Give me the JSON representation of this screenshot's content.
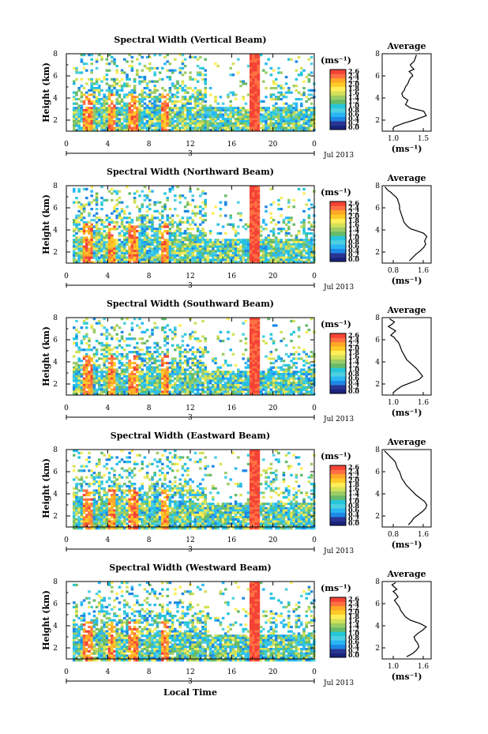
{
  "figure": {
    "bottom_xlabel": "Local Time",
    "colorbar_ticks": [
      "2.6",
      "2.4",
      "2.2",
      "2.0",
      "1.8",
      "1.6",
      "1.4",
      "1.2",
      "1.0",
      "0.8",
      "0.6",
      "0.4",
      "0.2",
      "0.0"
    ],
    "colormap": [
      "#1a237e",
      "#283593",
      "#1e88e5",
      "#29b6f6",
      "#4dd0e1",
      "#26c6da",
      "#66bb6a",
      "#9ccc65",
      "#d4e157",
      "#ffee58",
      "#ffca28",
      "#ffa726",
      "#ff7043",
      "#f44336"
    ],
    "date_label": "Jul 2013",
    "day_label": "3"
  },
  "chart_data": [
    {
      "type": "heatmap",
      "title": "Spectral Width (Vertical Beam)",
      "ylabel": "Height (km)",
      "unit_label": "(ms⁻¹)",
      "x_ticks": [
        "0",
        "4",
        "8",
        "12",
        "16",
        "20",
        "0"
      ],
      "y_ticks": [
        "8",
        "6",
        "4",
        "2"
      ],
      "xlim": [
        0,
        24
      ],
      "ylim": [
        1,
        8
      ],
      "colorbar_range": [
        0.0,
        2.6
      ],
      "profile": {
        "title": "Average",
        "xlabel": "(ms⁻¹)",
        "x_ticks": [
          "1.0",
          "1.5"
        ],
        "y_ticks": [
          "8",
          "6",
          "4",
          "2"
        ],
        "xlim": [
          0.9,
          1.7
        ],
        "ylim": [
          1,
          8
        ],
        "x": [
          1.07,
          1.1,
          1.24,
          1.42,
          1.62,
          1.58,
          1.36,
          1.28,
          1.32,
          1.24,
          1.22,
          1.26,
          1.28,
          1.32,
          1.34,
          1.36,
          1.4,
          1.38,
          1.34,
          1.42,
          1.38,
          1.36,
          1.42,
          1.44,
          1.46
        ],
        "heights": [
          1.2,
          1.4,
          1.7,
          2.0,
          2.4,
          2.8,
          3.1,
          3.4,
          3.8,
          4.1,
          4.4,
          4.7,
          5.0,
          5.3,
          5.6,
          5.8,
          6.0,
          6.2,
          6.4,
          6.6,
          6.8,
          7.0,
          7.3,
          7.6,
          7.9
        ]
      }
    },
    {
      "type": "heatmap",
      "title": "Spectral Width (Northward Beam)",
      "ylabel": "Height (km)",
      "unit_label": "(ms⁻¹)",
      "x_ticks": [
        "0",
        "4",
        "8",
        "12",
        "16",
        "20",
        "0"
      ],
      "y_ticks": [
        "8",
        "6",
        "4",
        "2"
      ],
      "xlim": [
        0,
        24
      ],
      "ylim": [
        1,
        8
      ],
      "colorbar_range": [
        0.0,
        2.6
      ],
      "profile": {
        "title": "Average",
        "xlabel": "(ms⁻¹)",
        "x_ticks": [
          "0.8",
          "1.6"
        ],
        "y_ticks": [
          "8",
          "6",
          "4",
          "2"
        ],
        "xlim": [
          0.8,
          1.7
        ],
        "ylim": [
          1,
          8
        ],
        "x": [
          1.3,
          1.36,
          1.42,
          1.5,
          1.56,
          1.6,
          1.58,
          1.62,
          1.56,
          1.45,
          1.32,
          1.25,
          1.2,
          1.18,
          1.16,
          1.14,
          1.12,
          1.12,
          1.1,
          1.08,
          1.05,
          1.0,
          0.96,
          0.9,
          0.85
        ],
        "heights": [
          1.2,
          1.5,
          1.8,
          2.1,
          2.4,
          2.7,
          3.0,
          3.4,
          3.7,
          3.9,
          4.1,
          4.4,
          4.7,
          5.0,
          5.3,
          5.6,
          5.9,
          6.2,
          6.5,
          6.8,
          7.0,
          7.2,
          7.4,
          7.6,
          7.9
        ]
      }
    },
    {
      "type": "heatmap",
      "title": "Spectral Width (Southward Beam)",
      "ylabel": "Height (km)",
      "unit_label": "(ms⁻¹)",
      "x_ticks": [
        "0",
        "4",
        "8",
        "12",
        "16",
        "20",
        "0"
      ],
      "y_ticks": [
        "8",
        "6",
        "4",
        "2"
      ],
      "xlim": [
        0,
        24
      ],
      "ylim": [
        1,
        8
      ],
      "colorbar_range": [
        0.0,
        2.6
      ],
      "profile": {
        "title": "Average",
        "xlabel": "(ms⁻¹)",
        "x_ticks": [
          "1.0",
          "1.6"
        ],
        "y_ticks": [
          "8",
          "6",
          "4",
          "2"
        ],
        "xlim": [
          0.9,
          1.7
        ],
        "ylim": [
          1,
          8
        ],
        "x": [
          1.08,
          1.14,
          1.22,
          1.36,
          1.5,
          1.56,
          1.52,
          1.46,
          1.38,
          1.3,
          1.26,
          1.22,
          1.2,
          1.18,
          1.16,
          1.12,
          1.1,
          1.04,
          1.08,
          1.12,
          1.06,
          1.0,
          1.06,
          1.1,
          1.02
        ],
        "heights": [
          1.2,
          1.5,
          1.8,
          2.1,
          2.4,
          2.7,
          3.0,
          3.4,
          3.8,
          4.2,
          4.6,
          5.0,
          5.3,
          5.6,
          5.8,
          6.0,
          6.2,
          6.4,
          6.6,
          6.8,
          7.0,
          7.2,
          7.4,
          7.6,
          7.9
        ]
      }
    },
    {
      "type": "heatmap",
      "title": "Spectral Width (Eastward Beam)",
      "ylabel": "Height (km)",
      "unit_label": "(ms⁻¹)",
      "x_ticks": [
        "0",
        "4",
        "8",
        "12",
        "16",
        "20",
        "0"
      ],
      "y_ticks": [
        "8",
        "6",
        "4",
        "2"
      ],
      "xlim": [
        0,
        24
      ],
      "ylim": [
        1,
        8
      ],
      "colorbar_range": [
        0.0,
        2.6
      ],
      "profile": {
        "title": "Average",
        "xlabel": "(ms⁻¹)",
        "x_ticks": [
          "0.8",
          "1.6"
        ],
        "y_ticks": [
          "8",
          "6",
          "4",
          "2"
        ],
        "xlim": [
          0.8,
          1.7
        ],
        "ylim": [
          1,
          8
        ],
        "x": [
          1.28,
          1.34,
          1.38,
          1.46,
          1.54,
          1.6,
          1.62,
          1.58,
          1.5,
          1.42,
          1.36,
          1.3,
          1.24,
          1.2,
          1.16,
          1.14,
          1.12,
          1.08,
          1.06,
          1.04,
          1.0,
          0.96,
          0.92,
          0.88,
          0.84
        ],
        "heights": [
          1.2,
          1.5,
          1.8,
          2.1,
          2.4,
          2.7,
          3.0,
          3.3,
          3.6,
          3.9,
          4.2,
          4.5,
          4.8,
          5.1,
          5.4,
          5.7,
          6.0,
          6.3,
          6.6,
          6.9,
          7.1,
          7.3,
          7.5,
          7.7,
          7.9
        ]
      }
    },
    {
      "type": "heatmap",
      "title": "Spectral Width (Westward Beam)",
      "ylabel": "Height (km)",
      "unit_label": "(ms⁻¹)",
      "x_ticks": [
        "0",
        "4",
        "8",
        "12",
        "16",
        "20",
        "0"
      ],
      "y_ticks": [
        "8",
        "6",
        "4",
        "2"
      ],
      "xlim": [
        0,
        24
      ],
      "ylim": [
        1,
        8
      ],
      "colorbar_range": [
        0.0,
        2.6
      ],
      "profile": {
        "title": "Average",
        "xlabel": "(ms⁻¹)",
        "x_ticks": [
          "1.0",
          "1.6"
        ],
        "y_ticks": [
          "8",
          "6",
          "4",
          "2"
        ],
        "xlim": [
          0.9,
          1.7
        ],
        "ylim": [
          1,
          8
        ],
        "x": [
          1.3,
          1.4,
          1.46,
          1.5,
          1.48,
          1.44,
          1.42,
          1.48,
          1.56,
          1.62,
          1.52,
          1.36,
          1.28,
          1.24,
          1.2,
          1.18,
          1.14,
          1.1,
          1.16,
          1.12,
          1.08,
          1.14,
          1.1,
          1.06,
          1.12
        ],
        "heights": [
          1.2,
          1.5,
          1.8,
          2.1,
          2.4,
          2.7,
          3.0,
          3.3,
          3.6,
          3.9,
          4.2,
          4.5,
          4.8,
          5.1,
          5.4,
          5.7,
          6.0,
          6.3,
          6.6,
          6.9,
          7.1,
          7.3,
          7.5,
          7.7,
          7.9
        ]
      }
    }
  ]
}
